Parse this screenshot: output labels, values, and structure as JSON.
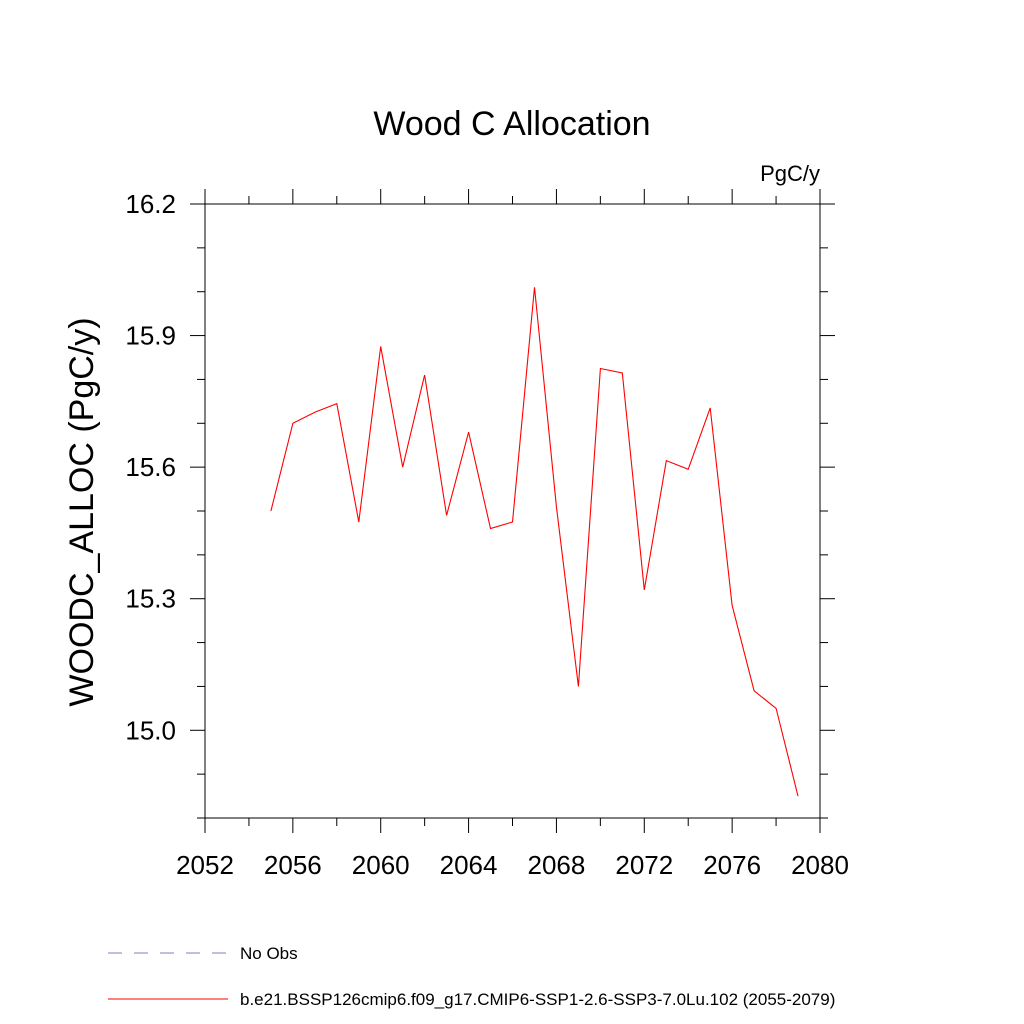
{
  "chart_data": {
    "type": "line",
    "title": "Wood C Allocation",
    "units": "PgC/y",
    "xlabel": "",
    "ylabel": "WOODC_ALLOC  (PgC/y)",
    "xlim": [
      2052,
      2080
    ],
    "ylim": [
      14.8,
      16.2
    ],
    "x_ticks": [
      "2052",
      "2056",
      "2060",
      "2064",
      "2068",
      "2072",
      "2076",
      "2080"
    ],
    "y_ticks": [
      "15.0",
      "15.3",
      "15.6",
      "15.9",
      "16.2"
    ],
    "grid": false,
    "legend_position": "bottom",
    "colors": {
      "series": "#ff0000",
      "no_obs": "#7f7fbf"
    },
    "legend": [
      {
        "label": "No Obs",
        "color": "#7f7fbf",
        "dash": true
      },
      {
        "label": "b.e21.BSSP126cmip6.f09_g17.CMIP6-SSP1-2.6-SSP3-7.0Lu.102 (2055-2079)",
        "color": "#ff0000",
        "dash": false
      }
    ],
    "series": [
      {
        "name": "b.e21.BSSP126cmip6.f09_g17.CMIP6-SSP1-2.6-SSP3-7.0Lu.102 (2055-2079)",
        "x": [
          2055,
          2056,
          2057,
          2058,
          2059,
          2060,
          2061,
          2062,
          2063,
          2064,
          2065,
          2066,
          2067,
          2068,
          2069,
          2070,
          2071,
          2072,
          2073,
          2074,
          2075,
          2076,
          2077,
          2078,
          2079
        ],
        "values": [
          15.5,
          15.7,
          15.725,
          15.745,
          15.475,
          15.875,
          15.6,
          15.81,
          15.49,
          15.68,
          15.46,
          15.475,
          16.01,
          15.51,
          15.1,
          15.825,
          15.815,
          15.32,
          15.615,
          15.595,
          15.735,
          15.285,
          15.09,
          15.05,
          14.85
        ]
      }
    ]
  }
}
